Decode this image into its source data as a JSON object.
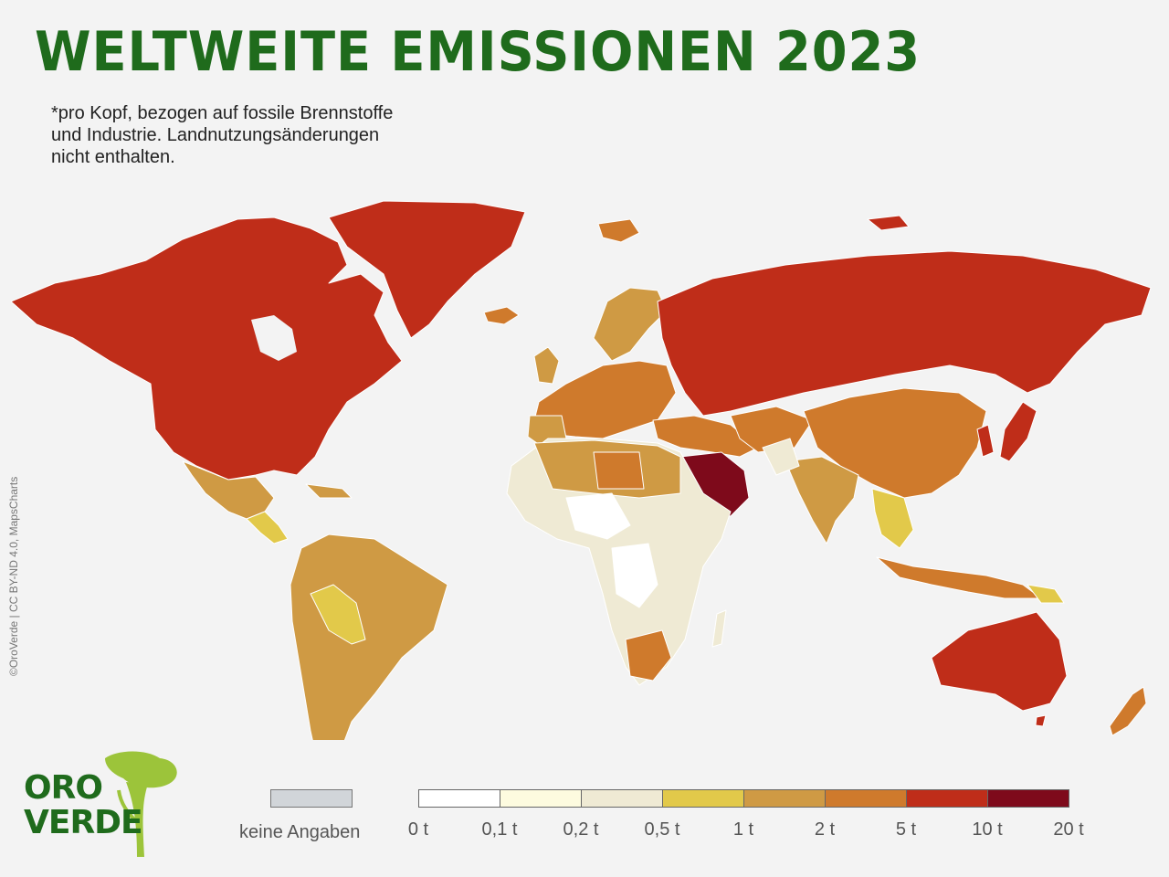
{
  "title": "WELTWEITE EMISSIONEN 2023",
  "subtitle_lines": [
    "*pro Kopf, bezogen auf fossile Brennstoffe",
    "und Industrie. Landnutzungsänderungen",
    "nicht enthalten."
  ],
  "credit": "©OroVerde | CC BY-ND 4.0, MapsCharts",
  "logo": {
    "line1": "ORO",
    "line2": "VERDE"
  },
  "legend": {
    "no_data_label": "keine Angaben",
    "no_data_color": "#d1d5d9",
    "colors": [
      "#ffffff",
      "#fdfbdf",
      "#efead4",
      "#e2c94a",
      "#cf9a44",
      "#cf7a2c",
      "#bf2d19",
      "#7e0a1b"
    ],
    "ticks": [
      "0 t",
      "0,1 t",
      "0,2 t",
      "0,5 t",
      "1 t",
      "2 t",
      "5 t",
      "10 t",
      "20 t"
    ]
  }
}
